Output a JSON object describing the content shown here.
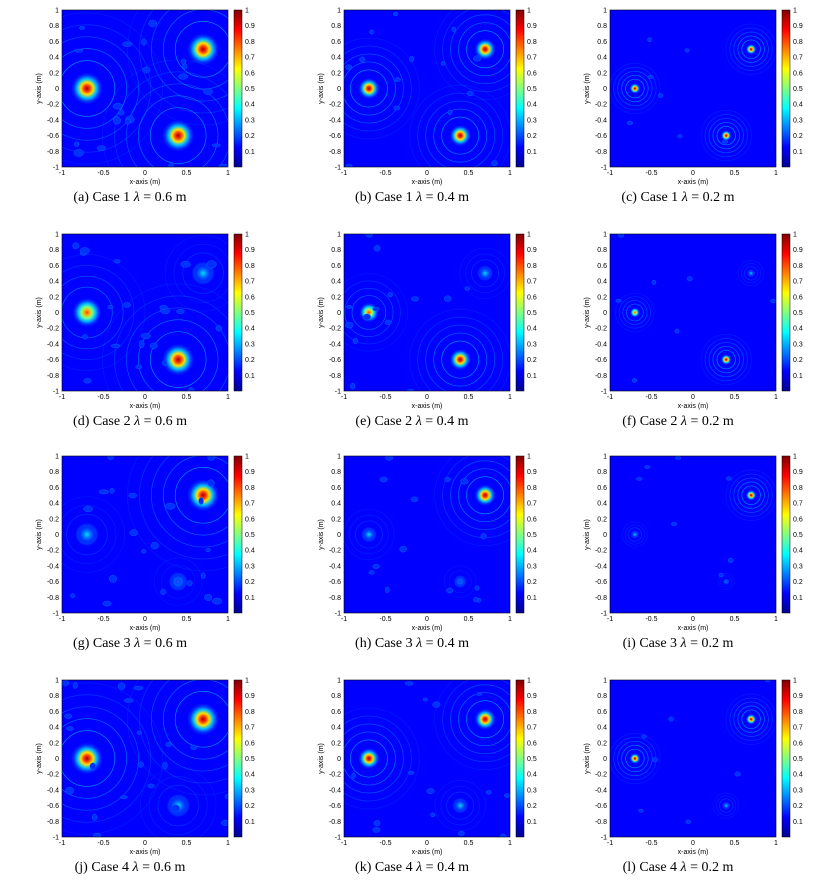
{
  "figure": {
    "xlabel": "x-axis (m)",
    "ylabel": "y-axis (m)",
    "xticks": [
      "-1",
      "-0.5",
      "0",
      "0.5",
      "1"
    ],
    "yticks": [
      "1",
      "0.8",
      "0.6",
      "0.4",
      "0.2",
      "0",
      "-0.2",
      "-0.4",
      "-0.6",
      "-0.8",
      "-1"
    ],
    "colorbar_ticks": [
      "1",
      "0.9",
      "0.8",
      "0.7",
      "0.6",
      "0.5",
      "0.4",
      "0.3",
      "0.2",
      "0.1"
    ],
    "colormap": [
      "#00008f",
      "#0000ff",
      "#0080ff",
      "#00ffff",
      "#80ff80",
      "#ffff00",
      "#ff8000",
      "#ff0000",
      "#800000"
    ]
  },
  "chart_data": [
    {
      "type": "heatmap",
      "label": "(a)",
      "case": "Case 1",
      "lambda": "0.6 m",
      "xlim": [
        -1,
        1
      ],
      "ylim": [
        -1,
        1
      ],
      "zlim": [
        0,
        1
      ],
      "sources": [
        {
          "x": -0.7,
          "y": 0.0,
          "peak": 1.0
        },
        {
          "x": 0.7,
          "y": 0.5,
          "peak": 1.0
        },
        {
          "x": 0.4,
          "y": -0.6,
          "peak": 1.0
        }
      ]
    },
    {
      "type": "heatmap",
      "label": "(b)",
      "case": "Case 1",
      "lambda": "0.4 m",
      "xlim": [
        -1,
        1
      ],
      "ylim": [
        -1,
        1
      ],
      "zlim": [
        0,
        1
      ],
      "sources": [
        {
          "x": -0.7,
          "y": 0.0,
          "peak": 1.0
        },
        {
          "x": 0.7,
          "y": 0.5,
          "peak": 1.0
        },
        {
          "x": 0.4,
          "y": -0.6,
          "peak": 1.0
        }
      ]
    },
    {
      "type": "heatmap",
      "label": "(c)",
      "case": "Case 1",
      "lambda": "0.2 m",
      "xlim": [
        -1,
        1
      ],
      "ylim": [
        -1,
        1
      ],
      "zlim": [
        0,
        1
      ],
      "sources": [
        {
          "x": -0.7,
          "y": 0.0,
          "peak": 1.0
        },
        {
          "x": 0.7,
          "y": 0.5,
          "peak": 1.0
        },
        {
          "x": 0.4,
          "y": -0.6,
          "peak": 1.0
        }
      ]
    },
    {
      "type": "heatmap",
      "label": "(d)",
      "case": "Case 2",
      "lambda": "0.6 m",
      "xlim": [
        -1,
        1
      ],
      "ylim": [
        -1,
        1
      ],
      "zlim": [
        0,
        1
      ],
      "sources": [
        {
          "x": -0.7,
          "y": 0.0,
          "peak": 0.8
        },
        {
          "x": 0.7,
          "y": 0.5,
          "peak": 0.4
        },
        {
          "x": 0.4,
          "y": -0.6,
          "peak": 1.0
        }
      ]
    },
    {
      "type": "heatmap",
      "label": "(e)",
      "case": "Case 2",
      "lambda": "0.4 m",
      "xlim": [
        -1,
        1
      ],
      "ylim": [
        -1,
        1
      ],
      "zlim": [
        0,
        1
      ],
      "sources": [
        {
          "x": -0.7,
          "y": 0.0,
          "peak": 0.8
        },
        {
          "x": 0.7,
          "y": 0.5,
          "peak": 0.4
        },
        {
          "x": 0.4,
          "y": -0.6,
          "peak": 1.0
        }
      ]
    },
    {
      "type": "heatmap",
      "label": "(f)",
      "case": "Case 2",
      "lambda": "0.2 m",
      "xlim": [
        -1,
        1
      ],
      "ylim": [
        -1,
        1
      ],
      "zlim": [
        0,
        1
      ],
      "sources": [
        {
          "x": -0.7,
          "y": 0.0,
          "peak": 0.8
        },
        {
          "x": 0.7,
          "y": 0.5,
          "peak": 0.4
        },
        {
          "x": 0.4,
          "y": -0.6,
          "peak": 1.0
        }
      ]
    },
    {
      "type": "heatmap",
      "label": "(g)",
      "case": "Case 3",
      "lambda": "0.6 m",
      "xlim": [
        -1,
        1
      ],
      "ylim": [
        -1,
        1
      ],
      "zlim": [
        0,
        1
      ],
      "sources": [
        {
          "x": -0.7,
          "y": 0.0,
          "peak": 0.4
        },
        {
          "x": 0.7,
          "y": 0.5,
          "peak": 1.0
        },
        {
          "x": 0.4,
          "y": -0.6,
          "peak": 0.1
        }
      ]
    },
    {
      "type": "heatmap",
      "label": "(h)",
      "case": "Case 3",
      "lambda": "0.4 m",
      "xlim": [
        -1,
        1
      ],
      "ylim": [
        -1,
        1
      ],
      "zlim": [
        0,
        1
      ],
      "sources": [
        {
          "x": -0.7,
          "y": 0.0,
          "peak": 0.4
        },
        {
          "x": 0.7,
          "y": 0.5,
          "peak": 1.0
        },
        {
          "x": 0.4,
          "y": -0.6,
          "peak": 0.1
        }
      ]
    },
    {
      "type": "heatmap",
      "label": "(i)",
      "case": "Case 3",
      "lambda": "0.2 m",
      "xlim": [
        -1,
        1
      ],
      "ylim": [
        -1,
        1
      ],
      "zlim": [
        0,
        1
      ],
      "sources": [
        {
          "x": -0.7,
          "y": 0.0,
          "peak": 0.4
        },
        {
          "x": 0.7,
          "y": 0.5,
          "peak": 1.0
        },
        {
          "x": 0.4,
          "y": -0.6,
          "peak": 0.1
        }
      ]
    },
    {
      "type": "heatmap",
      "label": "(j)",
      "case": "Case 4",
      "lambda": "0.6 m",
      "xlim": [
        -1,
        1
      ],
      "ylim": [
        -1,
        1
      ],
      "zlim": [
        0,
        1
      ],
      "sources": [
        {
          "x": -0.7,
          "y": 0.0,
          "peak": 1.0
        },
        {
          "x": 0.7,
          "y": 0.5,
          "peak": 1.0
        },
        {
          "x": 0.4,
          "y": -0.6,
          "peak": 0.4
        }
      ]
    },
    {
      "type": "heatmap",
      "label": "(k)",
      "case": "Case 4",
      "lambda": "0.4 m",
      "xlim": [
        -1,
        1
      ],
      "ylim": [
        -1,
        1
      ],
      "zlim": [
        0,
        1
      ],
      "sources": [
        {
          "x": -0.7,
          "y": 0.0,
          "peak": 1.0
        },
        {
          "x": 0.7,
          "y": 0.5,
          "peak": 1.0
        },
        {
          "x": 0.4,
          "y": -0.6,
          "peak": 0.4
        }
      ]
    },
    {
      "type": "heatmap",
      "label": "(l)",
      "case": "Case 4",
      "lambda": "0.2 m",
      "xlim": [
        -1,
        1
      ],
      "ylim": [
        -1,
        1
      ],
      "zlim": [
        0,
        1
      ],
      "sources": [
        {
          "x": -0.7,
          "y": 0.0,
          "peak": 1.0
        },
        {
          "x": 0.7,
          "y": 0.5,
          "peak": 1.0
        },
        {
          "x": 0.4,
          "y": -0.6,
          "peak": 0.4
        }
      ]
    }
  ],
  "captions": [
    {
      "label": "(a)",
      "case": "Case 1",
      "lambda_sym": "λ",
      "eq": " = ",
      "value": "0.6 m"
    },
    {
      "label": "(b)",
      "case": "Case 1",
      "lambda_sym": "λ",
      "eq": " = ",
      "value": "0.4 m"
    },
    {
      "label": "(c)",
      "case": "Case 1",
      "lambda_sym": "λ",
      "eq": " = ",
      "value": "0.2 m"
    },
    {
      "label": "(d)",
      "case": "Case 2",
      "lambda_sym": "λ",
      "eq": " = ",
      "value": "0.6 m"
    },
    {
      "label": "(e)",
      "case": "Case 2",
      "lambda_sym": "λ",
      "eq": " = ",
      "value": "0.4 m"
    },
    {
      "label": "(f)",
      "case": "Case 2",
      "lambda_sym": "λ",
      "eq": " = ",
      "value": "0.2 m"
    },
    {
      "label": "(g)",
      "case": "Case 3",
      "lambda_sym": "λ",
      "eq": " = ",
      "value": "0.6 m"
    },
    {
      "label": "(h)",
      "case": "Case 3",
      "lambda_sym": "λ",
      "eq": " = ",
      "value": "0.4 m"
    },
    {
      "label": "(i)",
      "case": "Case 3",
      "lambda_sym": "λ",
      "eq": " = ",
      "value": "0.2 m"
    },
    {
      "label": "(j)",
      "case": "Case 4",
      "lambda_sym": "λ",
      "eq": " = ",
      "value": "0.6 m"
    },
    {
      "label": "(k)",
      "case": "Case 4",
      "lambda_sym": "λ",
      "eq": " = ",
      "value": "0.4 m"
    },
    {
      "label": "(l)",
      "case": "Case 4",
      "lambda_sym": "λ",
      "eq": " = ",
      "value": "0.2 m"
    }
  ]
}
